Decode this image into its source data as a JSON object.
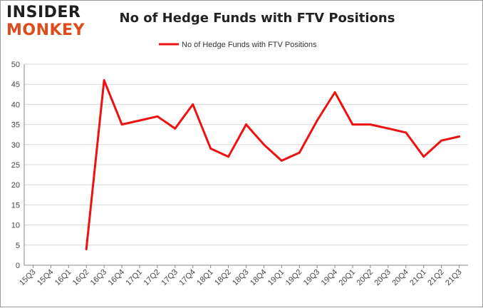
{
  "logo": {
    "line1": "INSIDER",
    "line2": "MONKEY"
  },
  "colors": {
    "series": "#ee1111",
    "grid": "#d9d9d9",
    "axis": "#888888",
    "logo_dark": "#1f1f1f",
    "logo_accent": "#e04a1c"
  },
  "chart_data": {
    "type": "line",
    "title": "No of Hedge Funds with FTV Positions",
    "xlabel": "",
    "ylabel": "",
    "ylim": [
      0,
      50
    ],
    "yticks": [
      0,
      5,
      10,
      15,
      20,
      25,
      30,
      35,
      40,
      45,
      50
    ],
    "grid": true,
    "legend_position": "top-center",
    "categories": [
      "15Q3",
      "15Q4",
      "16Q1",
      "16Q2",
      "16Q3",
      "16Q4",
      "17Q1",
      "17Q2",
      "17Q3",
      "17Q4",
      "18Q1",
      "18Q2",
      "18Q3",
      "18Q4",
      "19Q1",
      "19Q2",
      "19Q3",
      "19Q4",
      "20Q1",
      "20Q2",
      "20Q3",
      "20Q4",
      "21Q1",
      "21Q2",
      "21Q3"
    ],
    "series": [
      {
        "name": "No of Hedge Funds with FTV Positions",
        "values": [
          null,
          null,
          null,
          4,
          46,
          35,
          36,
          37,
          34,
          40,
          29,
          27,
          35,
          30,
          26,
          28,
          36,
          43,
          35,
          35,
          34,
          33,
          27,
          31,
          32
        ]
      }
    ]
  }
}
